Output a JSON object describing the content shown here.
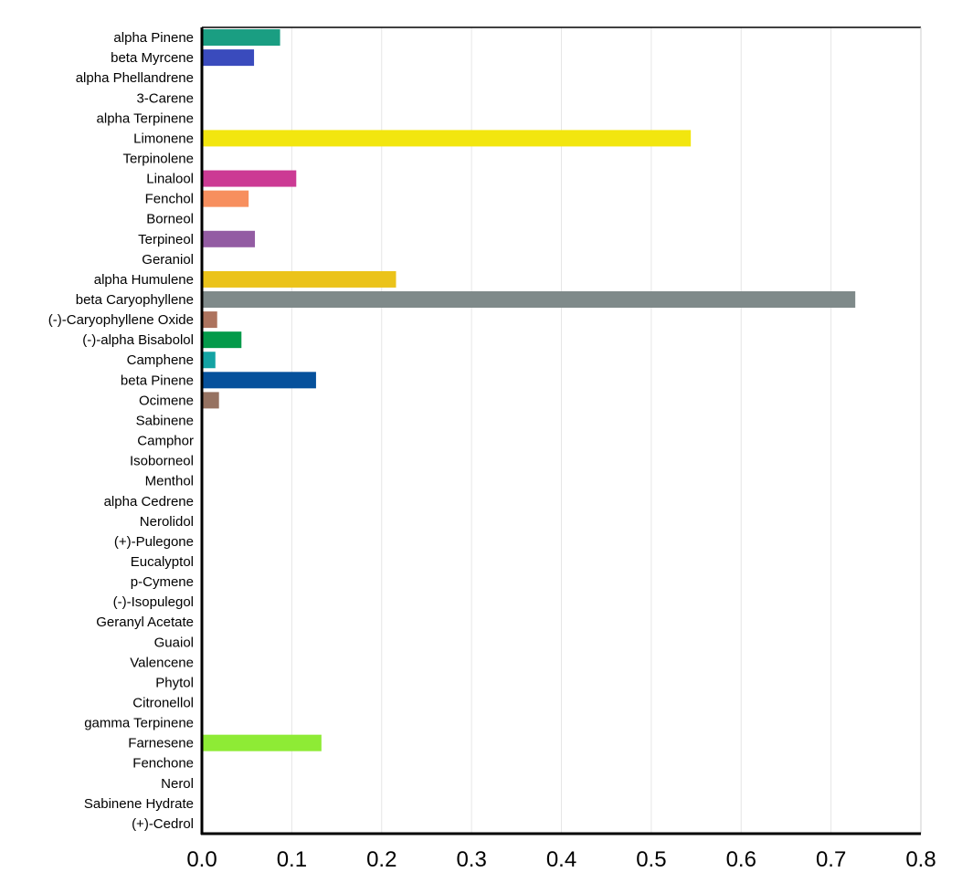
{
  "chart_data": {
    "type": "bar",
    "orientation": "horizontal",
    "title": "",
    "xlabel": "",
    "ylabel": "",
    "xlim": [
      0,
      0.8
    ],
    "x_ticks": [
      "0.0",
      "0.1",
      "0.2",
      "0.3",
      "0.4",
      "0.5",
      "0.6",
      "0.7",
      "0.8"
    ],
    "grid": "vertical",
    "categories": [
      "alpha Pinene",
      "beta Myrcene",
      "alpha Phellandrene",
      "3-Carene",
      "alpha Terpinene",
      "Limonene",
      "Terpinolene",
      "Linalool",
      "Fenchol",
      "Borneol",
      "Terpineol",
      "Geraniol",
      "alpha Humulene",
      "beta Caryophyllene",
      "(-)-Caryophyllene Oxide",
      "(-)-alpha Bisabolol",
      "Camphene",
      "beta Pinene",
      "Ocimene",
      "Sabinene",
      "Camphor",
      "Isoborneol",
      "Menthol",
      "alpha Cedrene",
      "Nerolidol",
      "(+)-Pulegone",
      "Eucalyptol",
      "p-Cymene",
      "(-)-Isopulegol",
      "Geranyl Acetate",
      "Guaiol",
      "Valencene",
      "Phytol",
      "Citronellol",
      "gamma Terpinene",
      "Farnesene",
      "Fenchone",
      "Nerol",
      "Sabinene Hydrate",
      "(+)-Cedrol"
    ],
    "values": [
      0.087,
      0.058,
      0,
      0,
      0,
      0.544,
      0,
      0.105,
      0.052,
      0,
      0.059,
      0,
      0.216,
      0.727,
      0.017,
      0.044,
      0.015,
      0.127,
      0.019,
      0,
      0,
      0,
      0,
      0,
      0,
      0,
      0,
      0,
      0,
      0,
      0,
      0,
      0,
      0,
      0,
      0.133,
      0,
      0,
      0,
      0
    ],
    "colors": [
      "#1a9e82",
      "#3a4bbd",
      "#000000",
      "#000000",
      "#000000",
      "#f2e60f",
      "#000000",
      "#cc3a94",
      "#f78f5e",
      "#000000",
      "#935ca3",
      "#000000",
      "#ebc31a",
      "#7f8a8a",
      "#ad735e",
      "#049a4a",
      "#14a3a3",
      "#06519c",
      "#967261",
      "#000000",
      "#000000",
      "#000000",
      "#000000",
      "#000000",
      "#000000",
      "#000000",
      "#000000",
      "#000000",
      "#000000",
      "#000000",
      "#000000",
      "#000000",
      "#000000",
      "#000000",
      "#000000",
      "#8eeb35",
      "#000000",
      "#000000",
      "#000000",
      "#000000"
    ],
    "axis_color": "#000000",
    "grid_color": "#e6e6e6"
  }
}
